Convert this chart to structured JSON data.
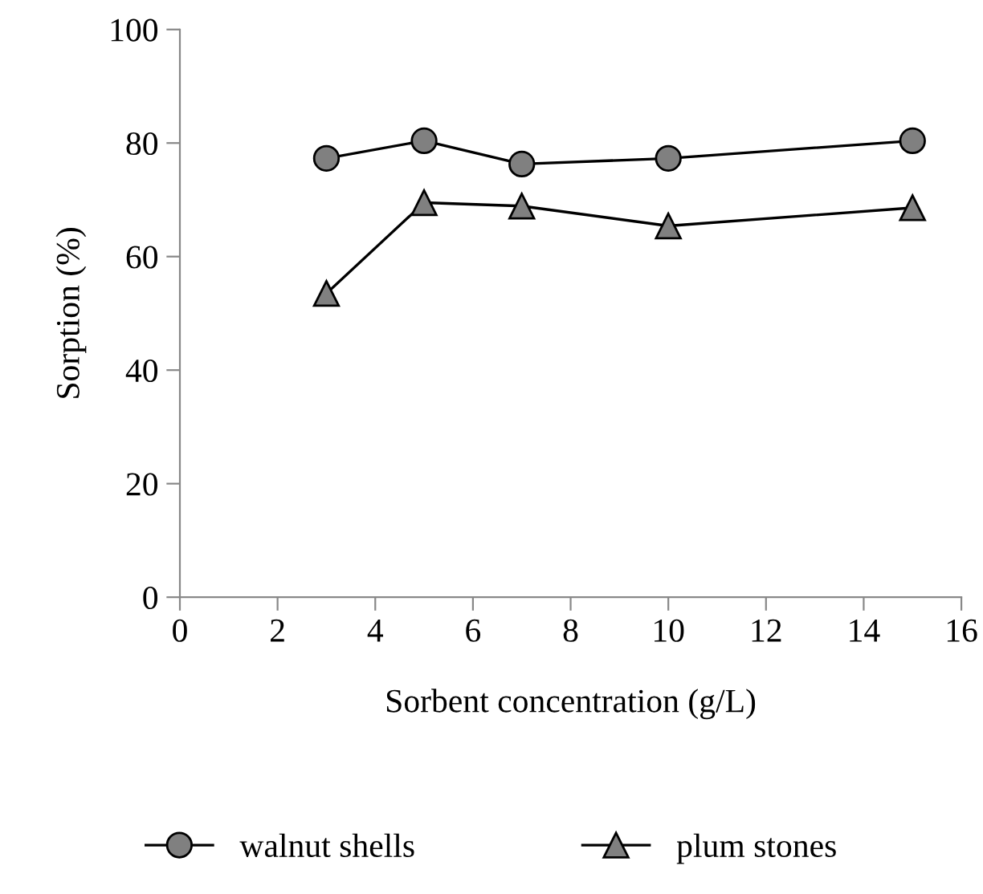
{
  "chart_data": {
    "type": "line",
    "xlabel": "Sorbent concentration (g/L)",
    "ylabel": "Sorption (%)",
    "x": [
      3,
      5,
      7,
      10,
      15
    ],
    "series": [
      {
        "name": "walnut shells",
        "color": "#808080",
        "marker": "circle",
        "values": [
          77.3,
          80.4,
          76.3,
          77.3,
          80.4
        ]
      },
      {
        "name": "plum stones",
        "color": "#808080",
        "marker": "triangle",
        "values": [
          53.5,
          69.5,
          68.9,
          65.4,
          68.6
        ]
      }
    ],
    "xlim": [
      0,
      16
    ],
    "xticks": [
      0,
      2,
      4,
      6,
      8,
      10,
      12,
      14,
      16
    ],
    "ylim": [
      0,
      100
    ],
    "yticks": [
      0,
      20,
      40,
      60,
      80,
      100
    ],
    "grid": false,
    "legend": "bottom",
    "line_style": "solid"
  }
}
